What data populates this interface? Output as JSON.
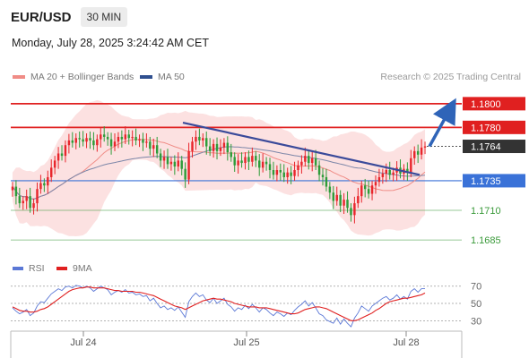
{
  "header": {
    "symbol": "EUR/USD",
    "timeframe": "30 MIN"
  },
  "datetime": "Monday, July 28, 2025 3:24:42 AM CET",
  "legend": [
    {
      "label": "MA 20 + Bollinger Bands",
      "color": "#f08c86"
    },
    {
      "label": "MA 50",
      "color": "#2f4f8f"
    }
  ],
  "copyright": "Research © 2025 Trading Central",
  "colors": {
    "resistance": "#e02020",
    "current_price": "#333333",
    "pivot": "#3a72d8",
    "support": "#3a9a3a",
    "arrow": "#2f64b8",
    "trendline": "#3a4a9a",
    "candle_up": "#e8262c",
    "candle_down": "#2e9c3a",
    "band_fill": "#fbdcdc"
  },
  "chart_data": [
    {
      "type": "candlestick",
      "title": "EUR/USD 30 MIN",
      "ylim": [
        1.167,
        1.1815
      ],
      "x_ticks": [
        "Jul 24",
        "Jul 25",
        "Jul 28"
      ],
      "levels": [
        {
          "value": 1.18,
          "label": "1.1800",
          "kind": "resistance"
        },
        {
          "value": 1.178,
          "label": "1.1780",
          "kind": "resistance"
        },
        {
          "value": 1.1764,
          "label": "1.1764",
          "kind": "current_price"
        },
        {
          "value": 1.1735,
          "label": "1.1735",
          "kind": "pivot"
        },
        {
          "value": 1.171,
          "label": "1.1710",
          "kind": "support"
        },
        {
          "value": 1.1685,
          "label": "1.1685",
          "kind": "support"
        }
      ],
      "trendline": {
        "from_price": 1.1784,
        "to_price": 1.174
      },
      "projection_target": 1.18,
      "series_close": [
        1.173,
        1.1722,
        1.1716,
        1.1718,
        1.1722,
        1.1712,
        1.1716,
        1.1728,
        1.1733,
        1.1731,
        1.1738,
        1.1746,
        1.1752,
        1.1758,
        1.1756,
        1.1765,
        1.1769,
        1.1767,
        1.1771,
        1.177,
        1.1768,
        1.1771,
        1.1769,
        1.1765,
        1.177,
        1.1774,
        1.1772,
        1.177,
        1.1764,
        1.1768,
        1.1772,
        1.177,
        1.1774,
        1.1771,
        1.1772,
        1.1769,
        1.177,
        1.1767,
        1.1768,
        1.1762,
        1.1765,
        1.1758,
        1.1752,
        1.1755,
        1.1749,
        1.1751,
        1.1747,
        1.1752,
        1.1745,
        1.1736,
        1.176,
        1.1768,
        1.1772,
        1.1769,
        1.1771,
        1.1764,
        1.176,
        1.1766,
        1.176,
        1.1763,
        1.1767,
        1.1759,
        1.1755,
        1.1748,
        1.1752,
        1.175,
        1.1755,
        1.1751,
        1.1756,
        1.1752,
        1.1746,
        1.1751,
        1.1749,
        1.1744,
        1.174,
        1.1744,
        1.1742,
        1.1738,
        1.1742,
        1.1739,
        1.1744,
        1.1748,
        1.1751,
        1.1756,
        1.175,
        1.1754,
        1.1748,
        1.174,
        1.1738,
        1.173,
        1.1725,
        1.1718,
        1.1723,
        1.1714,
        1.1719,
        1.1712,
        1.1706,
        1.1716,
        1.1722,
        1.1731,
        1.1728,
        1.1724,
        1.1731,
        1.1734,
        1.1738,
        1.1741,
        1.1744,
        1.174,
        1.1742,
        1.1746,
        1.1741,
        1.1745,
        1.1742,
        1.1754,
        1.176,
        1.1757,
        1.1763,
        1.1764
      ]
    },
    {
      "type": "line",
      "title": "RSI",
      "ylim": [
        20,
        78
      ],
      "y_ticks": [
        70,
        50,
        30
      ],
      "series": [
        {
          "name": "RSI",
          "color": "#5b78d6",
          "values": [
            45,
            41,
            38,
            40,
            43,
            36,
            39,
            47,
            52,
            51,
            56,
            61,
            64,
            67,
            65,
            69,
            70,
            68,
            71,
            70,
            68,
            70,
            68,
            64,
            67,
            70,
            68,
            66,
            60,
            63,
            65,
            63,
            66,
            62,
            63,
            60,
            61,
            58,
            59,
            53,
            56,
            50,
            45,
            47,
            43,
            45,
            42,
            46,
            40,
            34,
            52,
            58,
            62,
            58,
            60,
            54,
            51,
            56,
            50,
            53,
            56,
            49,
            46,
            41,
            45,
            43,
            48,
            44,
            49,
            45,
            40,
            45,
            43,
            39,
            36,
            40,
            38,
            35,
            39,
            37,
            42,
            46,
            49,
            53,
            47,
            51,
            45,
            38,
            36,
            31,
            29,
            27,
            33,
            26,
            32,
            27,
            23,
            33,
            39,
            47,
            44,
            41,
            47,
            50,
            53,
            56,
            58,
            54,
            56,
            60,
            55,
            58,
            55,
            64,
            67,
            63,
            67,
            67
          ]
        },
        {
          "name": "9MA",
          "color": "#e02020",
          "values": [
            46,
            44,
            42,
            41,
            41,
            40,
            40,
            41,
            43,
            44,
            46,
            49,
            52,
            55,
            58,
            61,
            64,
            66,
            67,
            68,
            68,
            69,
            69,
            68,
            68,
            68,
            68,
            67,
            66,
            65,
            65,
            64,
            64,
            64,
            64,
            63,
            63,
            62,
            61,
            60,
            59,
            57,
            55,
            53,
            51,
            49,
            47,
            46,
            45,
            43,
            45,
            47,
            49,
            51,
            53,
            54,
            55,
            56,
            55,
            55,
            54,
            53,
            52,
            50,
            49,
            48,
            47,
            46,
            46,
            46,
            45,
            45,
            45,
            44,
            43,
            42,
            41,
            40,
            39,
            38,
            38,
            39,
            41,
            43,
            44,
            45,
            46,
            46,
            45,
            44,
            42,
            40,
            38,
            36,
            34,
            32,
            30,
            30,
            31,
            33,
            35,
            37,
            39,
            42,
            44,
            47,
            50,
            52,
            53,
            54,
            55,
            56,
            56,
            57,
            58,
            59,
            60,
            62
          ]
        }
      ]
    }
  ],
  "rsi_legend": [
    {
      "label": "RSI",
      "color": "#5b78d6"
    },
    {
      "label": "9MA",
      "color": "#e02020"
    }
  ]
}
